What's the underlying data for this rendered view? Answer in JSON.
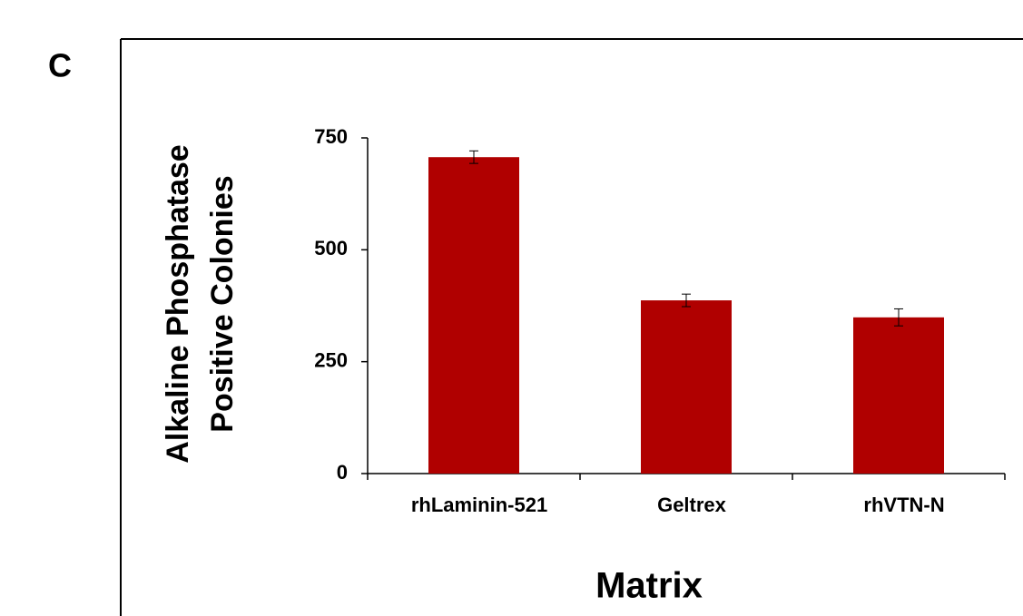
{
  "panel_label": "C",
  "chart_data": {
    "type": "bar",
    "ylabel": [
      "Alkaline Phosphatase",
      "Positive Colonies"
    ],
    "xlabel": "Matrix",
    "categories": [
      "rhLaminin-521",
      "Geltrex",
      "rhVTN-N"
    ],
    "values": [
      707,
      387,
      349
    ],
    "errors": [
      14,
      14,
      19
    ],
    "color": "#b00000",
    "ylim": [
      0,
      750
    ],
    "yticks": [
      0,
      250,
      500,
      750
    ]
  }
}
